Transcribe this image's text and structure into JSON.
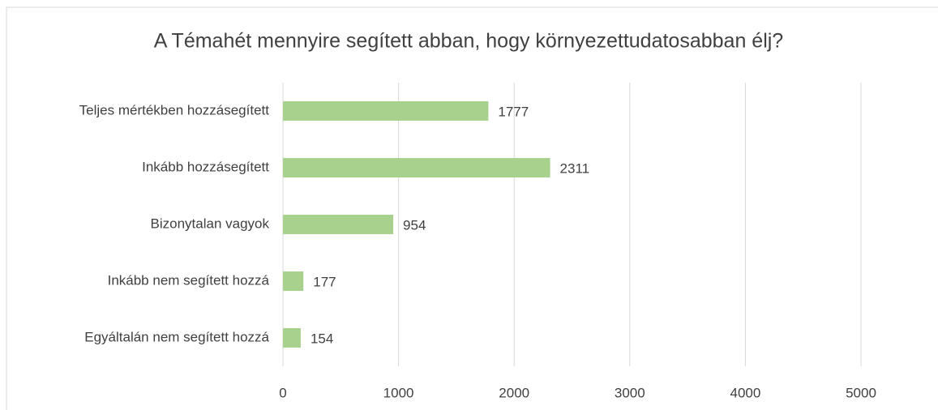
{
  "chart_data": {
    "type": "bar",
    "orientation": "horizontal",
    "title": "A Témahét mennyire segített abban, hogy környezettudatosabban élj?",
    "categories": [
      "Teljes mértékben hozzásegített",
      "Inkább hozzásegített",
      "Bizonytalan vagyok",
      "Inkább nem segített hozzá",
      "Egyáltalán nem segített hozzá"
    ],
    "values": [
      1777,
      2311,
      954,
      177,
      154
    ],
    "color": "#a9d18e",
    "xlim": [
      0,
      5000
    ],
    "xticks": [
      0,
      1000,
      2000,
      3000,
      4000,
      5000
    ],
    "grid": true
  }
}
